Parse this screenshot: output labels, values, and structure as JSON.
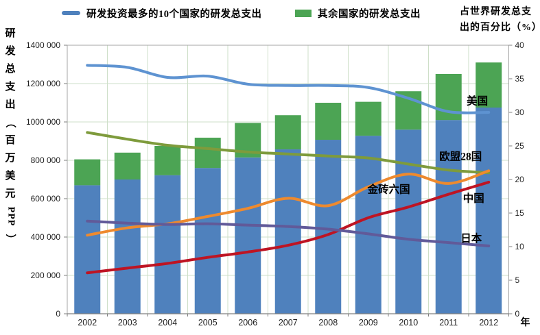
{
  "chart_data": {
    "type": "combo-stacked-bar-line",
    "categories": [
      "2002",
      "2003",
      "2004",
      "2005",
      "2006",
      "2007",
      "2008",
      "2009",
      "2010",
      "2011",
      "2012"
    ],
    "x_axis_unit": "年",
    "left_axis": {
      "title_chars": [
        "研",
        "发",
        "总",
        "支",
        "出",
        "（",
        "百",
        "万",
        "美",
        "元",
        "PPP",
        "）"
      ],
      "tick_labels_top_down": [
        "1400 000",
        "1200 000",
        "1000 000",
        "800 000",
        "600 000",
        "400 000",
        "200 000",
        "0"
      ],
      "min": 0,
      "max": 1400000,
      "step": 200000
    },
    "right_axis": {
      "title_lines": [
        "占世界研发总支",
        "出的百分比（%）"
      ],
      "tick_labels_top_down": [
        "40",
        "35",
        "30",
        "25",
        "20",
        "15",
        "10",
        "5",
        "0"
      ],
      "min": 0,
      "max": 40,
      "step": 5
    },
    "bar_series": [
      {
        "id": "top10",
        "name": "研发投资最多的10个国家的研发总支出",
        "color": "#4F81BD",
        "values": [
          670000,
          700000,
          722000,
          760000,
          815000,
          857000,
          907000,
          928000,
          960000,
          1010000,
          1075000
        ]
      },
      {
        "id": "rest",
        "name": "其余国家的研发总支出",
        "color": "#4CA454",
        "values": [
          135000,
          140000,
          153000,
          158000,
          180000,
          178000,
          193000,
          177000,
          200000,
          240000,
          235000
        ]
      }
    ],
    "line_series": [
      {
        "id": "us",
        "name": "美国",
        "color": "#5E93D1",
        "values": [
          37.0,
          36.7,
          35.2,
          35.4,
          34.2,
          34.0,
          34.0,
          33.7,
          32.1,
          30.1,
          30.0
        ],
        "label": {
          "x_year": 2011.45,
          "pct": 31.7
        }
      },
      {
        "id": "eu28",
        "name": "欧盟28国",
        "color": "#7E9B3C",
        "values": [
          27.0,
          26.0,
          25.1,
          24.6,
          24.1,
          23.8,
          23.5,
          23.2,
          22.3,
          21.4,
          21.0
        ],
        "label": {
          "x_year": 2010.77,
          "pct": 23.4
        }
      },
      {
        "id": "brics6",
        "name": "金砖六国",
        "color": "#EE8A2E",
        "values": [
          11.7,
          12.8,
          13.4,
          14.5,
          15.7,
          17.2,
          16.1,
          18.9,
          20.8,
          19.4,
          21.3
        ],
        "label": {
          "x_year": 2008.98,
          "pct": 18.5
        }
      },
      {
        "id": "china",
        "name": "中国",
        "color": "#BE1423",
        "values": [
          6.1,
          6.8,
          7.5,
          8.4,
          9.2,
          10.2,
          11.8,
          14.3,
          15.9,
          17.8,
          19.6
        ],
        "label": {
          "x_year": 2011.36,
          "pct": 17.2
        }
      },
      {
        "id": "japan",
        "name": "日本",
        "color": "#615A99",
        "values": [
          13.8,
          13.5,
          13.3,
          13.4,
          13.2,
          13.0,
          12.6,
          11.9,
          11.1,
          10.6,
          10.1
        ],
        "label": {
          "x_year": 2011.3,
          "pct": 11.2
        }
      }
    ],
    "style": {
      "gridline_color": "#CEDFC8",
      "border_color": "#A6A6A6",
      "axis_line_color": "#7F7F7F",
      "tick_mark_color": "#7F7F7F"
    }
  }
}
